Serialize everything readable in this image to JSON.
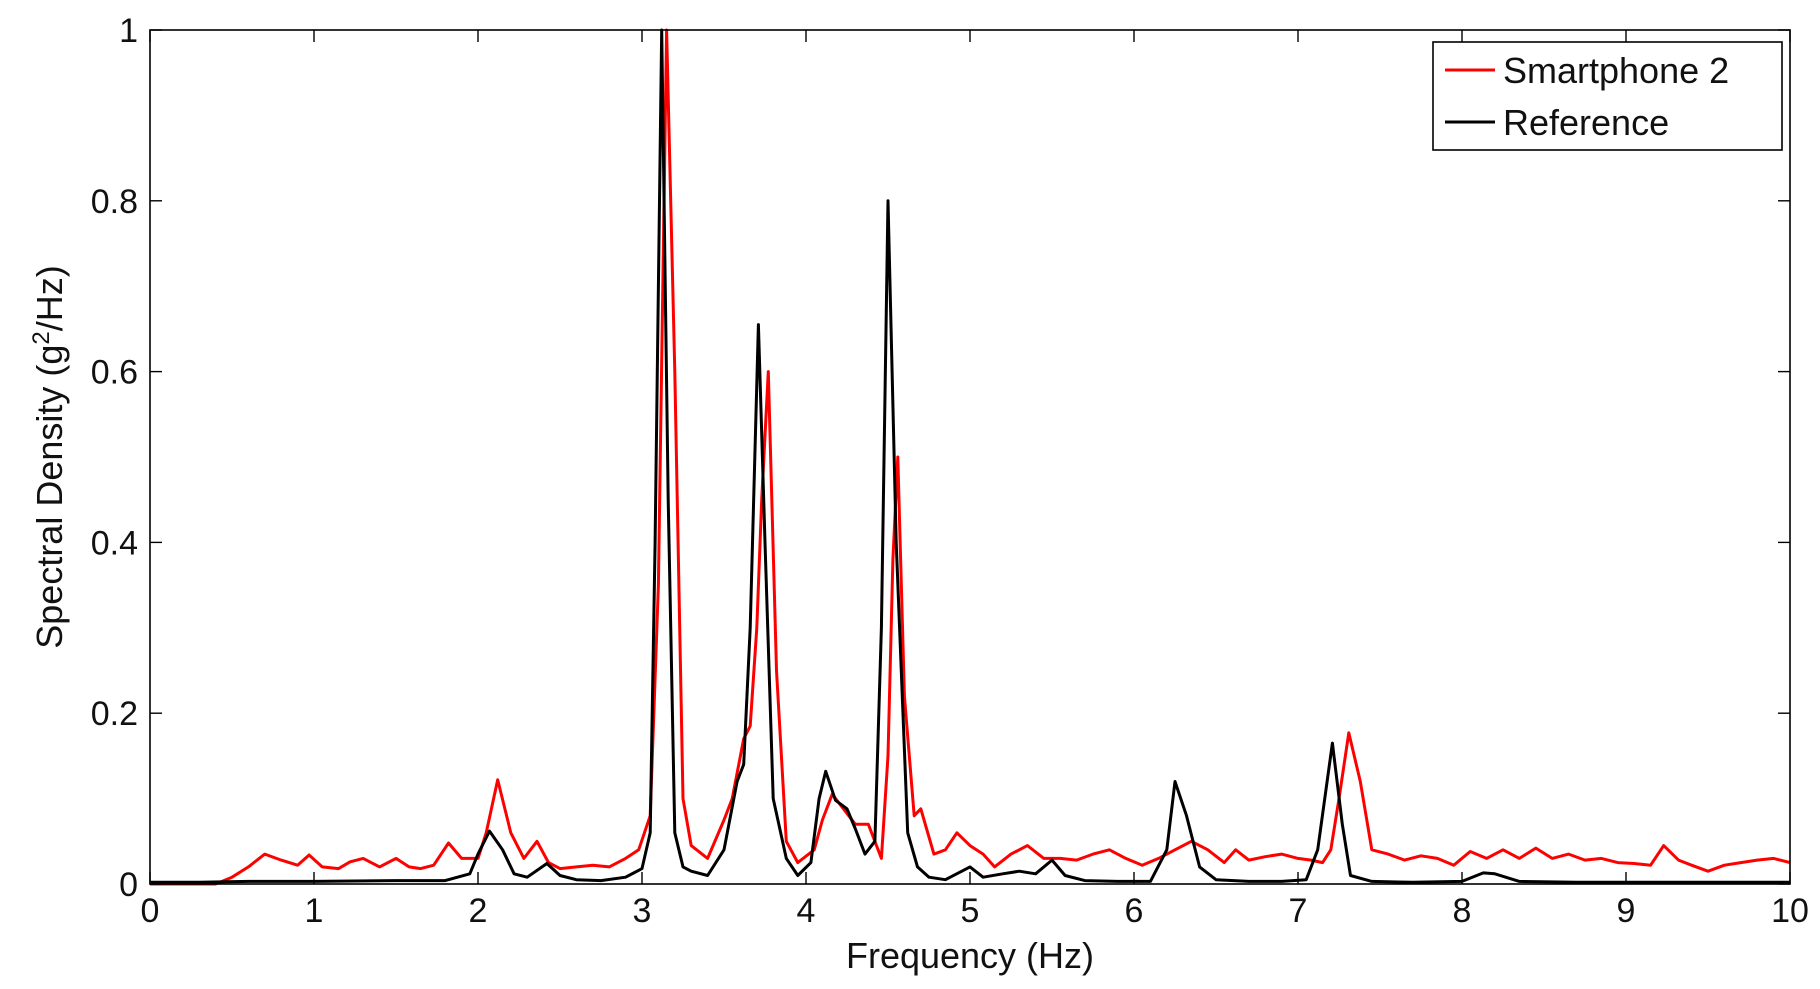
{
  "chart_data": {
    "type": "line",
    "title": "",
    "xlabel": "Frequency (Hz)",
    "ylabel_main": "Spectral Density (g",
    "ylabel_sup": "2",
    "ylabel_tail": "/Hz)",
    "xlim": [
      0,
      10
    ],
    "ylim": [
      0,
      1
    ],
    "xticks": [
      0,
      1,
      2,
      3,
      4,
      5,
      6,
      7,
      8,
      9,
      10
    ],
    "yticks": [
      0,
      0.2,
      0.4,
      0.6,
      0.8,
      1
    ],
    "xtick_labels": [
      "0",
      "1",
      "2",
      "3",
      "4",
      "5",
      "6",
      "7",
      "8",
      "9",
      "10"
    ],
    "ytick_labels": [
      "0",
      "0.2",
      "0.4",
      "0.6",
      "0.8",
      "1"
    ],
    "grid": false,
    "legend_position": "top-right",
    "series": [
      {
        "name": "Smartphone 2",
        "color": "#ff0000",
        "points": [
          [
            0,
            0
          ],
          [
            0.4,
            0
          ],
          [
            0.5,
            0.008
          ],
          [
            0.6,
            0.02
          ],
          [
            0.7,
            0.035
          ],
          [
            0.8,
            0.028
          ],
          [
            0.9,
            0.022
          ],
          [
            0.97,
            0.034
          ],
          [
            1.05,
            0.02
          ],
          [
            1.15,
            0.018
          ],
          [
            1.22,
            0.026
          ],
          [
            1.3,
            0.03
          ],
          [
            1.4,
            0.02
          ],
          [
            1.5,
            0.03
          ],
          [
            1.58,
            0.02
          ],
          [
            1.65,
            0.018
          ],
          [
            1.73,
            0.022
          ],
          [
            1.82,
            0.048
          ],
          [
            1.9,
            0.03
          ],
          [
            2.0,
            0.03
          ],
          [
            2.05,
            0.06
          ],
          [
            2.12,
            0.122
          ],
          [
            2.2,
            0.06
          ],
          [
            2.28,
            0.03
          ],
          [
            2.36,
            0.05
          ],
          [
            2.43,
            0.025
          ],
          [
            2.5,
            0.018
          ],
          [
            2.6,
            0.02
          ],
          [
            2.7,
            0.022
          ],
          [
            2.8,
            0.02
          ],
          [
            2.9,
            0.03
          ],
          [
            2.98,
            0.04
          ],
          [
            3.05,
            0.08
          ],
          [
            3.1,
            0.35
          ],
          [
            3.15,
            1.0
          ],
          [
            3.2,
            0.6
          ],
          [
            3.25,
            0.1
          ],
          [
            3.3,
            0.045
          ],
          [
            3.4,
            0.03
          ],
          [
            3.5,
            0.075
          ],
          [
            3.55,
            0.1
          ],
          [
            3.62,
            0.17
          ],
          [
            3.66,
            0.185
          ],
          [
            3.7,
            0.3
          ],
          [
            3.73,
            0.45
          ],
          [
            3.77,
            0.6
          ],
          [
            3.82,
            0.25
          ],
          [
            3.88,
            0.05
          ],
          [
            3.95,
            0.025
          ],
          [
            4.05,
            0.04
          ],
          [
            4.1,
            0.075
          ],
          [
            4.16,
            0.105
          ],
          [
            4.22,
            0.09
          ],
          [
            4.3,
            0.07
          ],
          [
            4.38,
            0.07
          ],
          [
            4.46,
            0.03
          ],
          [
            4.5,
            0.15
          ],
          [
            4.53,
            0.38
          ],
          [
            4.56,
            0.5
          ],
          [
            4.6,
            0.22
          ],
          [
            4.66,
            0.08
          ],
          [
            4.7,
            0.088
          ],
          [
            4.78,
            0.035
          ],
          [
            4.85,
            0.04
          ],
          [
            4.92,
            0.06
          ],
          [
            5.0,
            0.045
          ],
          [
            5.08,
            0.035
          ],
          [
            5.15,
            0.02
          ],
          [
            5.25,
            0.035
          ],
          [
            5.35,
            0.045
          ],
          [
            5.45,
            0.03
          ],
          [
            5.55,
            0.03
          ],
          [
            5.65,
            0.028
          ],
          [
            5.75,
            0.035
          ],
          [
            5.85,
            0.04
          ],
          [
            5.95,
            0.03
          ],
          [
            6.05,
            0.022
          ],
          [
            6.15,
            0.03
          ],
          [
            6.25,
            0.04
          ],
          [
            6.35,
            0.05
          ],
          [
            6.45,
            0.04
          ],
          [
            6.55,
            0.025
          ],
          [
            6.62,
            0.04
          ],
          [
            6.7,
            0.028
          ],
          [
            6.8,
            0.032
          ],
          [
            6.9,
            0.035
          ],
          [
            7.0,
            0.03
          ],
          [
            7.08,
            0.028
          ],
          [
            7.15,
            0.025
          ],
          [
            7.2,
            0.04
          ],
          [
            7.25,
            0.1
          ],
          [
            7.31,
            0.177
          ],
          [
            7.38,
            0.12
          ],
          [
            7.45,
            0.04
          ],
          [
            7.55,
            0.035
          ],
          [
            7.65,
            0.028
          ],
          [
            7.75,
            0.033
          ],
          [
            7.85,
            0.03
          ],
          [
            7.95,
            0.022
          ],
          [
            8.05,
            0.038
          ],
          [
            8.15,
            0.03
          ],
          [
            8.25,
            0.04
          ],
          [
            8.35,
            0.03
          ],
          [
            8.45,
            0.042
          ],
          [
            8.55,
            0.03
          ],
          [
            8.65,
            0.035
          ],
          [
            8.75,
            0.028
          ],
          [
            8.85,
            0.03
          ],
          [
            8.95,
            0.025
          ],
          [
            9.05,
            0.024
          ],
          [
            9.15,
            0.022
          ],
          [
            9.23,
            0.045
          ],
          [
            9.32,
            0.028
          ],
          [
            9.4,
            0.022
          ],
          [
            9.5,
            0.015
          ],
          [
            9.6,
            0.022
          ],
          [
            9.7,
            0.025
          ],
          [
            9.8,
            0.028
          ],
          [
            9.9,
            0.03
          ],
          [
            10.0,
            0.025
          ]
        ]
      },
      {
        "name": "Reference",
        "color": "#000000",
        "points": [
          [
            0,
            0.002
          ],
          [
            0.3,
            0.002
          ],
          [
            0.6,
            0.003
          ],
          [
            1.0,
            0.003
          ],
          [
            1.5,
            0.004
          ],
          [
            1.8,
            0.004
          ],
          [
            1.95,
            0.012
          ],
          [
            2.0,
            0.035
          ],
          [
            2.07,
            0.062
          ],
          [
            2.15,
            0.04
          ],
          [
            2.22,
            0.012
          ],
          [
            2.3,
            0.008
          ],
          [
            2.42,
            0.024
          ],
          [
            2.5,
            0.01
          ],
          [
            2.6,
            0.005
          ],
          [
            2.75,
            0.004
          ],
          [
            2.9,
            0.008
          ],
          [
            3.0,
            0.018
          ],
          [
            3.05,
            0.06
          ],
          [
            3.08,
            0.4
          ],
          [
            3.12,
            1.0
          ],
          [
            3.16,
            0.45
          ],
          [
            3.2,
            0.06
          ],
          [
            3.25,
            0.02
          ],
          [
            3.3,
            0.015
          ],
          [
            3.4,
            0.01
          ],
          [
            3.5,
            0.04
          ],
          [
            3.58,
            0.12
          ],
          [
            3.62,
            0.14
          ],
          [
            3.66,
            0.3
          ],
          [
            3.71,
            0.655
          ],
          [
            3.75,
            0.4
          ],
          [
            3.8,
            0.1
          ],
          [
            3.88,
            0.03
          ],
          [
            3.95,
            0.01
          ],
          [
            4.03,
            0.025
          ],
          [
            4.08,
            0.1
          ],
          [
            4.12,
            0.132
          ],
          [
            4.18,
            0.098
          ],
          [
            4.25,
            0.088
          ],
          [
            4.3,
            0.065
          ],
          [
            4.36,
            0.035
          ],
          [
            4.42,
            0.05
          ],
          [
            4.46,
            0.3
          ],
          [
            4.5,
            0.8
          ],
          [
            4.55,
            0.4
          ],
          [
            4.62,
            0.06
          ],
          [
            4.68,
            0.02
          ],
          [
            4.75,
            0.008
          ],
          [
            4.85,
            0.005
          ],
          [
            4.95,
            0.015
          ],
          [
            5.0,
            0.02
          ],
          [
            5.08,
            0.008
          ],
          [
            5.2,
            0.012
          ],
          [
            5.3,
            0.015
          ],
          [
            5.4,
            0.012
          ],
          [
            5.5,
            0.028
          ],
          [
            5.58,
            0.01
          ],
          [
            5.7,
            0.004
          ],
          [
            5.9,
            0.003
          ],
          [
            6.1,
            0.003
          ],
          [
            6.2,
            0.04
          ],
          [
            6.25,
            0.12
          ],
          [
            6.32,
            0.08
          ],
          [
            6.4,
            0.02
          ],
          [
            6.5,
            0.005
          ],
          [
            6.7,
            0.003
          ],
          [
            6.9,
            0.003
          ],
          [
            7.05,
            0.005
          ],
          [
            7.12,
            0.04
          ],
          [
            7.21,
            0.165
          ],
          [
            7.27,
            0.07
          ],
          [
            7.32,
            0.01
          ],
          [
            7.45,
            0.003
          ],
          [
            7.7,
            0.002
          ],
          [
            8.0,
            0.003
          ],
          [
            8.13,
            0.013
          ],
          [
            8.2,
            0.012
          ],
          [
            8.35,
            0.003
          ],
          [
            8.7,
            0.002
          ],
          [
            9.2,
            0.002
          ],
          [
            10.0,
            0.002
          ]
        ]
      }
    ]
  }
}
